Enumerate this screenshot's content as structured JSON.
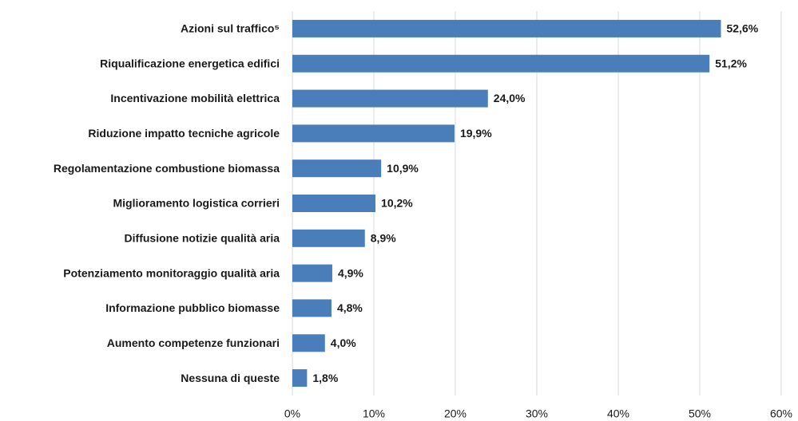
{
  "chart_data": {
    "type": "bar",
    "orientation": "horizontal",
    "categories": [
      "Azioni sul traffico⁵",
      "Riqualificazione energetica edifici",
      "Incentivazione mobilità elettrica",
      "Riduzione impatto tecniche agricole",
      "Regolamentazione combustione biomassa",
      "Miglioramento logistica corrieri",
      "Diffusione notizie qualità aria",
      "Potenziamento monitoraggio qualità aria",
      "Informazione pubblico biomasse",
      "Aumento competenze funzionari",
      "Nessuna di queste"
    ],
    "values": [
      52.6,
      51.2,
      24.0,
      19.9,
      10.9,
      10.2,
      8.9,
      4.9,
      4.8,
      4.0,
      1.8
    ],
    "value_labels": [
      "52,6%",
      "51,2%",
      "24,0%",
      "19,9%",
      "10,9%",
      "10,2%",
      "8,9%",
      "4,9%",
      "4,8%",
      "4,0%",
      "1,8%"
    ],
    "color": "#4a7ebb",
    "xlim": [
      0,
      60
    ],
    "xticks": [
      {
        "value": 0,
        "label": "0%"
      },
      {
        "value": 10,
        "label": "10%"
      },
      {
        "value": 20,
        "label": "20%"
      },
      {
        "value": 30,
        "label": "30%"
      },
      {
        "value": 40,
        "label": "40%"
      },
      {
        "value": 50,
        "label": "50%"
      },
      {
        "value": 60,
        "label": "60%"
      }
    ],
    "grid": true
  }
}
